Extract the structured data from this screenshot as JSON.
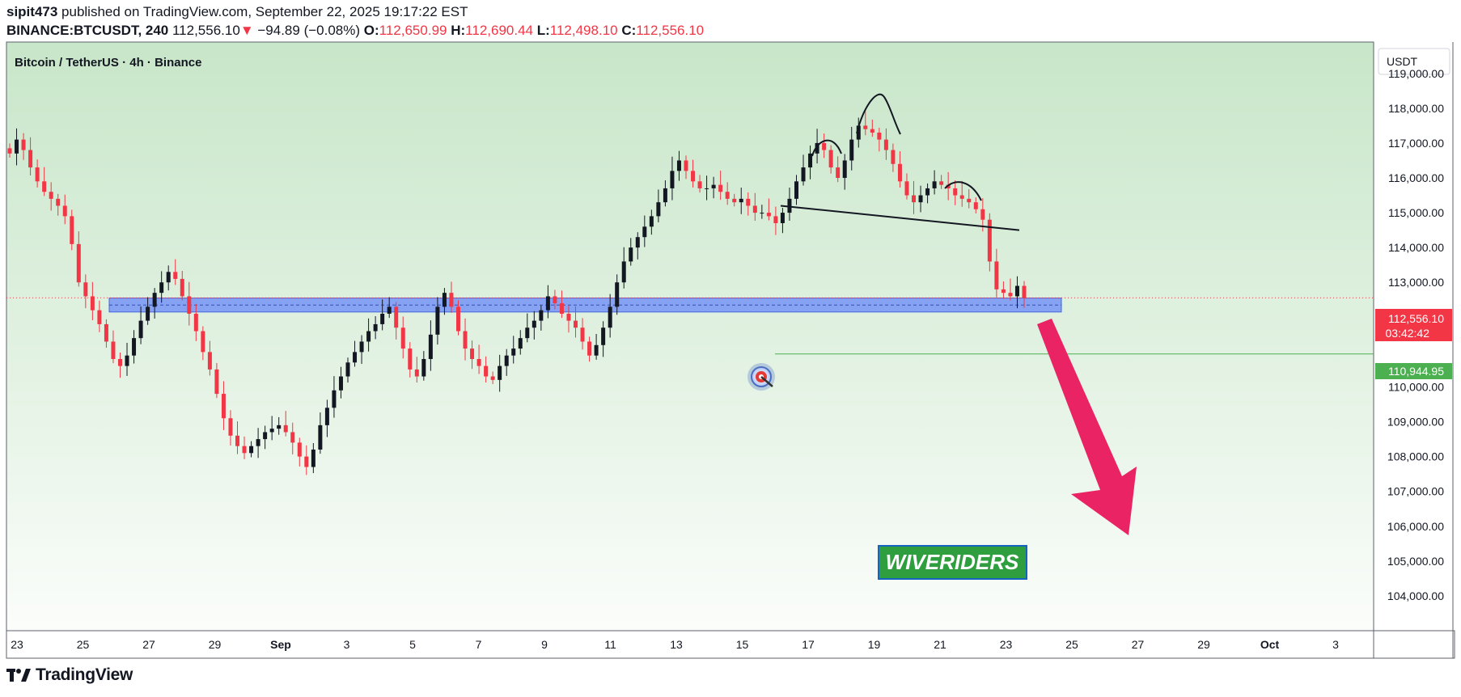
{
  "header": {
    "publisher_line": "sipit473 published on TradingView.com, September 22, 2025 19:17:22 EST",
    "publisher": "sipit473",
    "symbol": "BINANCE:BTCUSDT, 240",
    "last": "112,556.10",
    "change": "−94.89 (−0.08%)",
    "open_label": "O:",
    "open": "112,650.99",
    "high_label": "H:",
    "high": "112,690.44",
    "low_label": "L:",
    "low": "112,498.10",
    "close_label": "C:",
    "close": "112,556.10"
  },
  "chart_title": "Bitcoin / TetherUS · 4h · Binance",
  "currency_button": "USDT",
  "price_tag": {
    "price": "112,556.10",
    "countdown": "03:42:42"
  },
  "target_tag": "110,944.95",
  "watermark": "WIVERIDERS",
  "footer": {
    "brand": "TradingView"
  },
  "colors": {
    "up": "#131722",
    "down": "#f23645",
    "support": "#6f8ef7",
    "target_line": "#4caf50",
    "arrow": "#ea2364"
  },
  "chart_data": {
    "type": "candlestick",
    "title": "Bitcoin / TetherUS · 4h · Binance",
    "ylim": [
      103000,
      119900
    ],
    "y_ticks": [
      "104,000.00",
      "105,000.00",
      "106,000.00",
      "107,000.00",
      "108,000.00",
      "109,000.00",
      "110,000.00",
      "113,000.00",
      "114,000.00",
      "115,000.00",
      "116,000.00",
      "117,000.00",
      "118,000.00",
      "119,000.00"
    ],
    "x_ticks": [
      "23",
      "25",
      "27",
      "29",
      "Sep",
      "3",
      "5",
      "7",
      "9",
      "11",
      "13",
      "15",
      "17",
      "19",
      "21",
      "23",
      "25",
      "27",
      "29",
      "Oct",
      "3"
    ],
    "support_zone": [
      112150,
      112550
    ],
    "target_level": 110944.95,
    "neckline": [
      115200,
      114500
    ],
    "close_path": [
      116700,
      117100,
      116800,
      116300,
      115900,
      115600,
      115400,
      115200,
      114900,
      114100,
      113000,
      112600,
      112200,
      111800,
      111300,
      110800,
      110600,
      110900,
      111400,
      111900,
      112300,
      112700,
      113000,
      113300,
      113100,
      112600,
      112100,
      111600,
      111000,
      110500,
      109800,
      109100,
      108600,
      108300,
      108100,
      108300,
      108500,
      108700,
      108800,
      108900,
      108700,
      108400,
      108000,
      107700,
      108200,
      108900,
      109400,
      109900,
      110300,
      110700,
      111000,
      111300,
      111600,
      111800,
      112100,
      112300,
      111700,
      111100,
      110500,
      110300,
      110800,
      111500,
      112300,
      112700,
      112300,
      111600,
      111100,
      110800,
      110600,
      110300,
      110200,
      110600,
      110900,
      111100,
      111400,
      111700,
      111900,
      112200,
      112600,
      112400,
      112100,
      111900,
      111700,
      111300,
      110900,
      111200,
      111700,
      112300,
      113000,
      113600,
      114000,
      114300,
      114600,
      114900,
      115300,
      115700,
      116200,
      116500,
      116200,
      115900,
      115700,
      115700,
      115800,
      115600,
      115400,
      115300,
      115400,
      115200,
      115000,
      115000,
      114900,
      114700,
      115000,
      115400,
      115900,
      116300,
      116700,
      117000,
      116800,
      116300,
      116000,
      116500,
      117100,
      117500,
      117400,
      117300,
      117100,
      116800,
      116400,
      115900,
      115500,
      115300,
      115500,
      115700,
      115900,
      115800,
      115700,
      115500,
      115400,
      115300,
      115100,
      114800,
      113600,
      112800,
      112700,
      112600,
      112900,
      112556
    ]
  }
}
